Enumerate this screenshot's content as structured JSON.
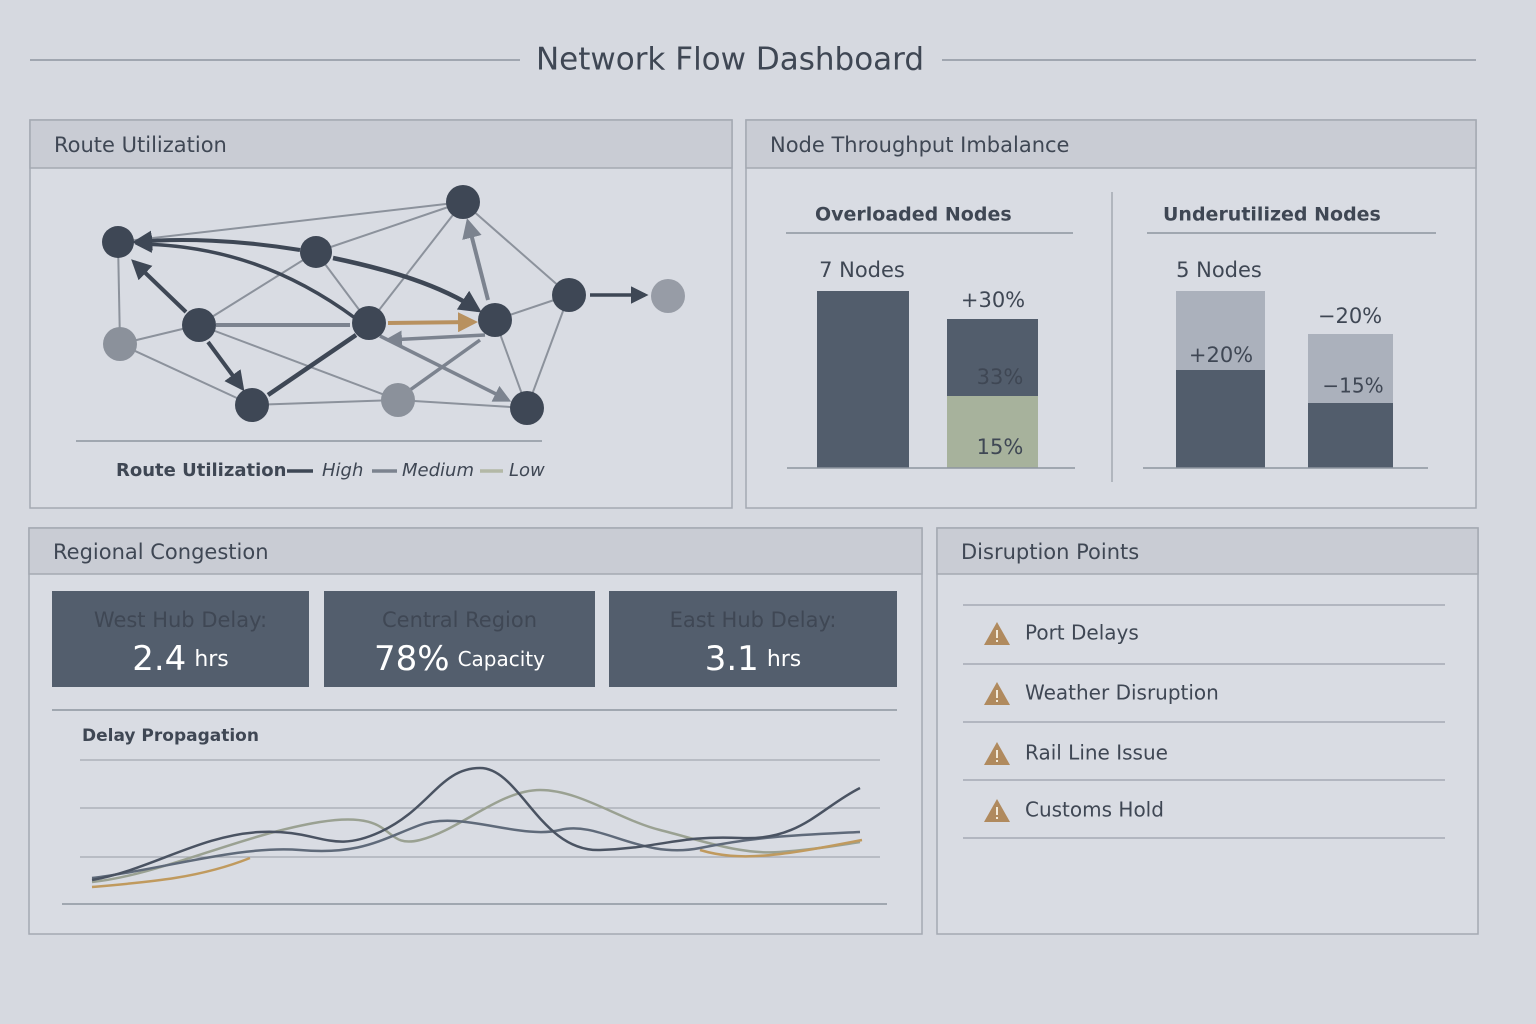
{
  "header": {
    "title": "Network Flow Dashboard"
  },
  "route_utilization": {
    "title": "Route Utilization",
    "legend": {
      "title": "Route Utilization",
      "items": [
        "High",
        "Medium",
        "Low"
      ]
    }
  },
  "node_throughput": {
    "title": "Node Throughput Imbalance",
    "overloaded": {
      "title": "Overloaded Nodes",
      "count": "7 Nodes",
      "labels": [
        "+30%",
        "33%",
        "15%"
      ]
    },
    "underutilized": {
      "title": "Underutilized Nodes",
      "count": "5 Nodes",
      "labels": [
        "+20%",
        "−20%",
        "−15%"
      ]
    }
  },
  "regional_congestion": {
    "title": "Regional Congestion",
    "cards": [
      {
        "label": "West Hub Delay:",
        "value": "2.4",
        "unit": "hrs"
      },
      {
        "label": "Central Region",
        "value": "78%",
        "unit": "Capacity"
      },
      {
        "label": "East Hub Delay:",
        "value": "3.1",
        "unit": "hrs"
      }
    ],
    "delay_propagation": {
      "title": "Delay Propagation"
    }
  },
  "disruption_points": {
    "title": "Disruption Points",
    "items": [
      "Port Delays",
      "Weather Disruption",
      "Rail Line Issue",
      "Customs Hold"
    ]
  }
}
